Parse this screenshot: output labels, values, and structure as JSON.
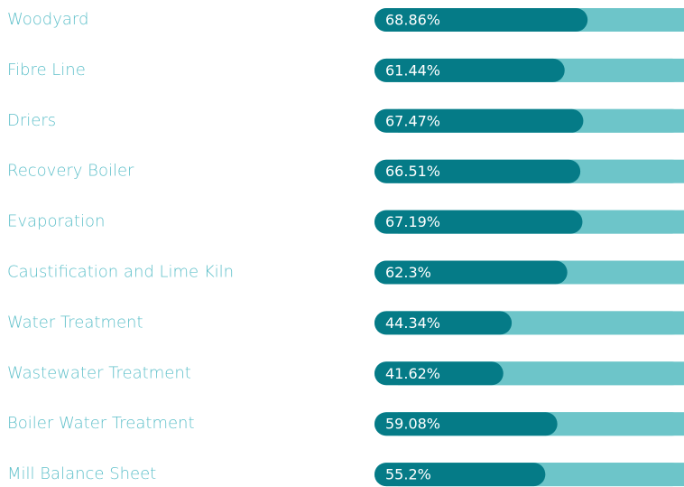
{
  "chart_data": {
    "type": "bar",
    "orientation": "horizontal",
    "categories": [
      "Woodyard",
      "Fibre Line",
      "Driers",
      "Recovery Boiler",
      "Evaporation",
      "Caustification and Lime Kiln",
      "Water Treatment",
      "Wastewater Treatment",
      "Boiler Water Treatment",
      "Mill Balance Sheet"
    ],
    "values": [
      68.86,
      61.44,
      67.47,
      66.51,
      67.19,
      62.3,
      44.34,
      41.62,
      59.08,
      55.2
    ],
    "value_labels": [
      "68.86%",
      "61.44%",
      "67.47%",
      "66.51%",
      "67.19%",
      "62.3%",
      "44.34%",
      "41.62%",
      "59.08%",
      "55.2%"
    ],
    "xlim": [
      0,
      100
    ],
    "color": "#057b87",
    "track_color": "#6dc5c9",
    "label_color": "#5fc0ca"
  }
}
